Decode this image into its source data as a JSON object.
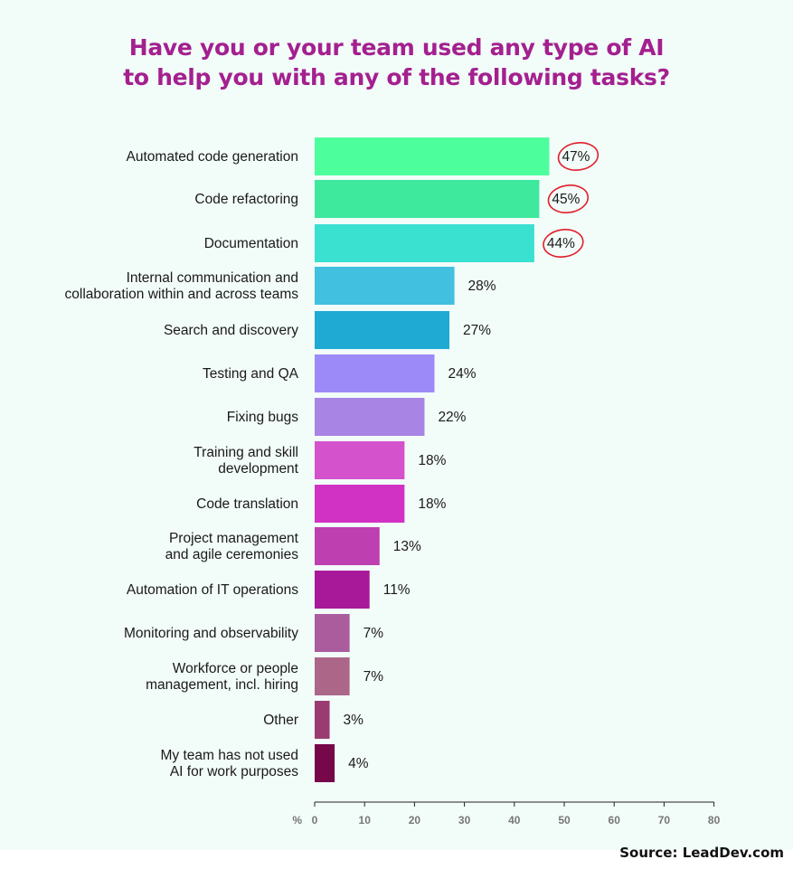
{
  "chart_data": {
    "type": "bar",
    "orientation": "horizontal",
    "title": [
      "Have you or your team used any type of AI",
      "to help you with any of the following tasks?"
    ],
    "categories": [
      [
        "Automated code generation"
      ],
      [
        "Code refactoring"
      ],
      [
        "Documentation"
      ],
      [
        "Internal communication and",
        "collaboration within and across teams"
      ],
      [
        "Search and discovery"
      ],
      [
        "Testing and QA"
      ],
      [
        "Fixing bugs"
      ],
      [
        "Training and skill",
        "development"
      ],
      [
        "Code translation"
      ],
      [
        "Project management",
        "and agile ceremonies"
      ],
      [
        "Automation of IT operations"
      ],
      [
        "Monitoring and observability"
      ],
      [
        "Workforce or people",
        "management, incl. hiring"
      ],
      [
        "Other"
      ],
      [
        "My team has not used",
        "AI for work purposes"
      ]
    ],
    "values": [
      47,
      45,
      44,
      28,
      27,
      24,
      22,
      18,
      18,
      13,
      11,
      7,
      7,
      3,
      4
    ],
    "value_labels": [
      "47%",
      "45%",
      "44%",
      "28%",
      "27%",
      "24%",
      "22%",
      "18%",
      "18%",
      "13%",
      "11%",
      "7%",
      "7%",
      "3%",
      "4%"
    ],
    "bar_colors": [
      "#4dfe9d",
      "#3ee89d",
      "#3ae0d0",
      "#42c0e0",
      "#1faad3",
      "#9b8af7",
      "#a884e4",
      "#d452cc",
      "#d232c3",
      "#bd3fb0",
      "#a8199a",
      "#aa5c9d",
      "#ac6788",
      "#9a3c72",
      "#760849"
    ],
    "circled_values": [
      0,
      1,
      2
    ],
    "xlim": [
      0,
      80
    ],
    "xticks": [
      0,
      10,
      20,
      30,
      40,
      50,
      60,
      70,
      80
    ],
    "xlabel": "%"
  },
  "source": "Source: LeadDev.com",
  "colors": {
    "title": "#a4208f",
    "annotation_circle": "#e01f2a",
    "background": "#f2fcf9"
  }
}
